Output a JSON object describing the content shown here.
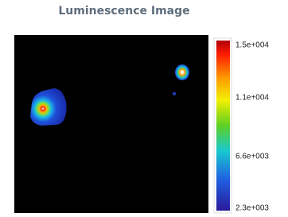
{
  "title": "Luminescence Image",
  "colorbar": {
    "labels": [
      "1.5e+004",
      "1.1e+004",
      "6.6e+003",
      "2.3e+003"
    ]
  }
}
